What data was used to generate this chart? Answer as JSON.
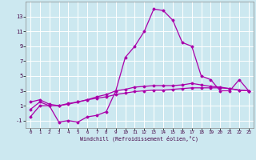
{
  "title": "",
  "xlabel": "Windchill (Refroidissement éolien,°C)",
  "ylabel": "",
  "background_color": "#cce8f0",
  "grid_color": "#ffffff",
  "line_color": "#aa00aa",
  "xlim": [
    -0.5,
    23.5
  ],
  "ylim": [
    -2,
    15
  ],
  "xticks": [
    0,
    1,
    2,
    3,
    4,
    5,
    6,
    7,
    8,
    9,
    10,
    11,
    12,
    13,
    14,
    15,
    16,
    17,
    18,
    19,
    20,
    21,
    22,
    23
  ],
  "yticks": [
    -1,
    1,
    3,
    5,
    7,
    9,
    11,
    13
  ],
  "line1_x": [
    0,
    1,
    2,
    3,
    4,
    5,
    6,
    7,
    8,
    9,
    10,
    11,
    12,
    13,
    14,
    15,
    16,
    17,
    18,
    19,
    20,
    21,
    22,
    23
  ],
  "line1_y": [
    0.5,
    1.5,
    1.0,
    1.0,
    1.3,
    1.5,
    1.8,
    2.0,
    2.2,
    2.5,
    2.7,
    2.9,
    3.0,
    3.1,
    3.1,
    3.2,
    3.3,
    3.4,
    3.4,
    3.4,
    3.4,
    3.3,
    3.1,
    3.0
  ],
  "line2_x": [
    0,
    1,
    2,
    3,
    4,
    5,
    6,
    7,
    8,
    9,
    10,
    11,
    12,
    13,
    14,
    15,
    16,
    17,
    18,
    19,
    20,
    21,
    22,
    23
  ],
  "line2_y": [
    1.5,
    1.8,
    1.2,
    1.0,
    1.2,
    1.5,
    1.8,
    2.2,
    2.5,
    3.0,
    3.2,
    3.5,
    3.6,
    3.7,
    3.7,
    3.7,
    3.8,
    4.0,
    3.8,
    3.6,
    3.5,
    3.3,
    3.1,
    3.0
  ],
  "line3_x": [
    0,
    1,
    2,
    3,
    4,
    5,
    6,
    7,
    8,
    9,
    10,
    11,
    12,
    13,
    14,
    15,
    16,
    17,
    18,
    19,
    20,
    21,
    22,
    23
  ],
  "line3_y": [
    -0.5,
    1.0,
    1.0,
    -1.2,
    -1.0,
    -1.2,
    -0.5,
    -0.3,
    0.2,
    3.0,
    7.5,
    9.0,
    11.0,
    14.0,
    13.8,
    12.5,
    9.5,
    9.0,
    5.0,
    4.5,
    3.0,
    3.0,
    4.5,
    3.0
  ],
  "figsize": [
    3.2,
    2.0
  ],
  "dpi": 100
}
